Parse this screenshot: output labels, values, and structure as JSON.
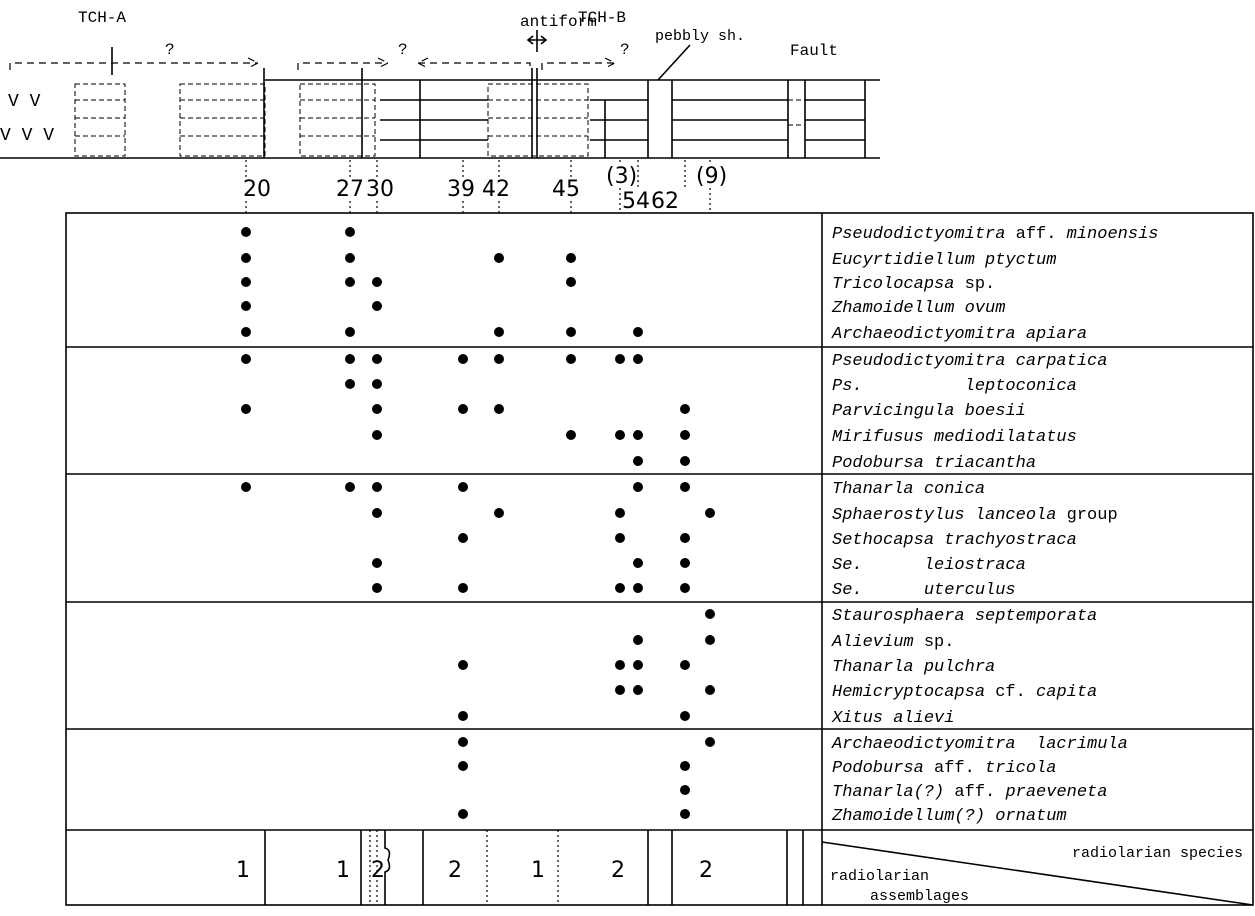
{
  "section": {
    "labels": [
      "TCH-A",
      "?",
      "?",
      "antiform",
      "TCH-B",
      "?",
      "pebbly sh.",
      "Fault",
      "V V",
      "V V V"
    ]
  },
  "samples": [
    "20",
    "27",
    "30",
    "39",
    "42",
    "45",
    "(3)",
    "54",
    "62",
    "(9)"
  ],
  "groups": [
    {
      "species": [
        {
          "parts": [
            {
              "text": "Pseudodictyomitra",
              "style": "italic"
            },
            {
              "text": " aff. ",
              "style": "normal"
            },
            {
              "text": "minoensis",
              "style": "italic"
            }
          ],
          "present_in": [
            0,
            1
          ]
        },
        {
          "parts": [
            {
              "text": "Eucyrtidiellum ptyctum",
              "style": "italic"
            }
          ],
          "present_in": [
            0,
            1,
            4,
            5
          ]
        },
        {
          "parts": [
            {
              "text": "Tricolocapsa",
              "style": "italic"
            },
            {
              "text": " sp.",
              "style": "normal"
            }
          ],
          "present_in": [
            0,
            1,
            2,
            5
          ]
        },
        {
          "parts": [
            {
              "text": "Zhamoidellum ovum",
              "style": "italic"
            }
          ],
          "present_in": [
            0,
            2
          ]
        },
        {
          "parts": [
            {
              "text": "Archaeodictyomitra apiara",
              "style": "italic"
            }
          ],
          "present_in": [
            0,
            1,
            4,
            5,
            7
          ]
        }
      ]
    },
    {
      "species": [
        {
          "parts": [
            {
              "text": "Pseudodictyomitra carpatica",
              "style": "italic"
            }
          ],
          "present_in": [
            0,
            1,
            2,
            3,
            4,
            5,
            6,
            7
          ]
        },
        {
          "parts": [
            {
              "text": "Ps.          leptoconica",
              "style": "italic"
            }
          ],
          "present_in": [
            1,
            2
          ]
        },
        {
          "parts": [
            {
              "text": "Parvicingula boesii",
              "style": "italic"
            }
          ],
          "present_in": [
            0,
            2,
            3,
            4,
            8
          ]
        },
        {
          "parts": [
            {
              "text": "Mirifusus mediodilatatus",
              "style": "italic"
            }
          ],
          "present_in": [
            2,
            5,
            6,
            7,
            8
          ]
        },
        {
          "parts": [
            {
              "text": "Podobursa triacantha",
              "style": "italic"
            }
          ],
          "present_in": [
            7,
            8
          ]
        }
      ]
    },
    {
      "species": [
        {
          "parts": [
            {
              "text": "Thanarla conica",
              "style": "italic"
            }
          ],
          "present_in": [
            0,
            1,
            2,
            3,
            7,
            8
          ]
        },
        {
          "parts": [
            {
              "text": "Sphaerostylus lanceola",
              "style": "italic"
            },
            {
              "text": " group",
              "style": "normal"
            }
          ],
          "present_in": [
            2,
            4,
            6,
            9
          ]
        },
        {
          "parts": [
            {
              "text": "Sethocapsa trachyostraca",
              "style": "italic"
            }
          ],
          "present_in": [
            3,
            6,
            8
          ]
        },
        {
          "parts": [
            {
              "text": "Se.      leiostraca",
              "style": "italic"
            }
          ],
          "present_in": [
            2,
            7,
            8
          ]
        },
        {
          "parts": [
            {
              "text": "Se.      uterculus",
              "style": "italic"
            }
          ],
          "present_in": [
            2,
            3,
            6,
            7,
            8
          ]
        }
      ]
    },
    {
      "species": [
        {
          "parts": [
            {
              "text": "Staurosphaera septemporata",
              "style": "italic"
            }
          ],
          "present_in": [
            9
          ]
        },
        {
          "parts": [
            {
              "text": "Alievium",
              "style": "italic"
            },
            {
              "text": " sp.",
              "style": "normal"
            }
          ],
          "present_in": [
            7,
            9
          ]
        },
        {
          "parts": [
            {
              "text": "Thanarla pulchra",
              "style": "italic"
            }
          ],
          "present_in": [
            3,
            6,
            7,
            8
          ]
        },
        {
          "parts": [
            {
              "text": "Hemicryptocapsa",
              "style": "italic"
            },
            {
              "text": " cf. ",
              "style": "normal"
            },
            {
              "text": "capita",
              "style": "italic"
            }
          ],
          "present_in": [
            6,
            7,
            9
          ]
        },
        {
          "parts": [
            {
              "text": "Xitus alievi",
              "style": "italic"
            }
          ],
          "present_in": [
            3,
            8
          ]
        }
      ]
    },
    {
      "species": [
        {
          "parts": [
            {
              "text": "Archaeodictyomitra  lacrimula",
              "style": "italic"
            }
          ],
          "present_in": [
            3,
            9
          ]
        },
        {
          "parts": [
            {
              "text": "Podobursa",
              "style": "italic"
            },
            {
              "text": " aff. ",
              "style": "normal"
            },
            {
              "text": "tricola",
              "style": "italic"
            }
          ],
          "present_in": [
            3,
            8
          ]
        },
        {
          "parts": [
            {
              "text": "Thanarla(?)",
              "style": "italic"
            },
            {
              "text": " aff. ",
              "style": "normal"
            },
            {
              "text": "praeveneta",
              "style": "italic"
            }
          ],
          "present_in": [
            8
          ]
        },
        {
          "parts": [
            {
              "text": "Zhamoidellum(?) ornatum",
              "style": "italic"
            }
          ],
          "present_in": [
            3,
            8
          ]
        }
      ]
    }
  ],
  "assemblages": {
    "numbers": [
      1,
      1,
      2,
      2,
      1,
      2,
      2
    ],
    "header_species": "radiolarian species",
    "header_assemblages": [
      "radiolarian",
      "assemblages"
    ]
  }
}
